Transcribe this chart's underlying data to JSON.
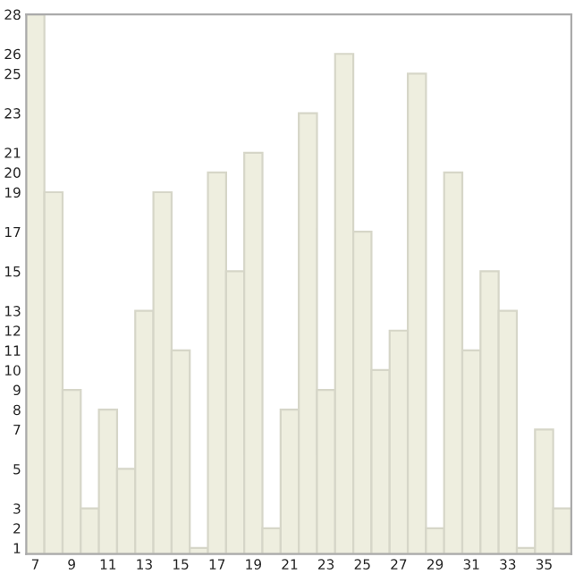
{
  "chart_data": {
    "type": "bar",
    "x": [
      7,
      8,
      9,
      10,
      11,
      12,
      13,
      14,
      15,
      16,
      17,
      18,
      19,
      20,
      21,
      22,
      23,
      24,
      25,
      26,
      27,
      28,
      29,
      30,
      31,
      32,
      33,
      34,
      35,
      36
    ],
    "values": [
      28,
      19,
      9,
      3,
      8,
      5,
      13,
      19,
      11,
      1,
      20,
      15,
      21,
      2,
      8,
      23,
      9,
      26,
      17,
      10,
      12,
      25,
      2,
      20,
      11,
      15,
      13,
      1,
      7,
      3
    ],
    "color": "#eeeedf",
    "xlim": [
      6.5,
      36.5
    ],
    "xticks": [
      7,
      9,
      11,
      13,
      15,
      17,
      19,
      21,
      23,
      25,
      27,
      29,
      31,
      33,
      35
    ],
    "ylim": [
      0.7,
      28
    ],
    "yticks": [
      1,
      2,
      3,
      5,
      7,
      8,
      9,
      10,
      11,
      12,
      13,
      15,
      17,
      19,
      20,
      21,
      23,
      25,
      26,
      28
    ],
    "grid": false
  }
}
